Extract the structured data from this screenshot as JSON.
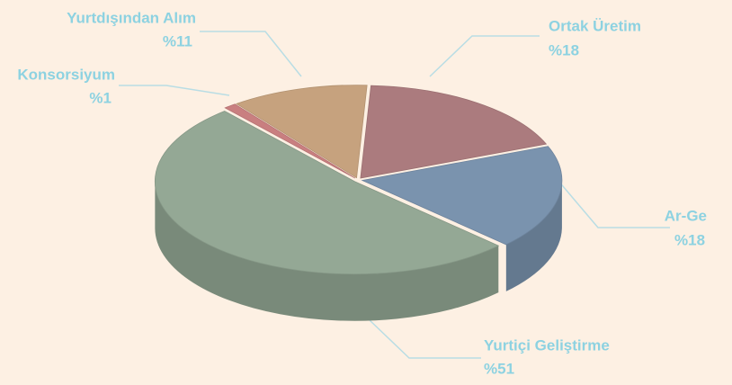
{
  "chart_data": {
    "type": "pie3d",
    "categories": [
      "Ortak Üretim",
      "Ar-Ge",
      "Yurtiçi Geliştirme",
      "Konsorsiyum",
      "Yurtdışından Alım"
    ],
    "values": [
      18,
      18,
      51,
      1,
      11
    ],
    "value_labels": [
      "%18",
      "%18",
      "%51",
      "%1",
      "%11"
    ],
    "colors": [
      "#ab7b7e",
      "#7a93ae",
      "#94a895",
      "#c97f80",
      "#c6a27e"
    ]
  }
}
